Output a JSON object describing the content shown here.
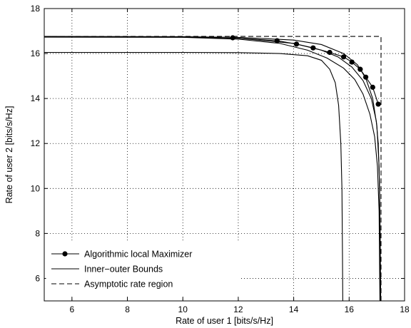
{
  "chart_data": {
    "type": "line",
    "xlabel": "Rate of user 1 [bits/s/Hz]",
    "ylabel": "Rate of user 2 [bits/s/Hz]",
    "xlim": [
      5,
      18
    ],
    "ylim": [
      5,
      18
    ],
    "xticks": [
      6,
      8,
      10,
      12,
      14,
      16,
      18
    ],
    "yticks": [
      6,
      8,
      10,
      12,
      14,
      16,
      18
    ],
    "grid": true,
    "legend_position": "bottom-left",
    "series": [
      {
        "name": "Algorithmic local Maximizer",
        "style": "solid-with-markers",
        "color": "#000000",
        "x": [
          11.8,
          13.4,
          14.1,
          14.7,
          15.3,
          15.8,
          16.1,
          16.4,
          16.6,
          16.85,
          17.05
        ],
        "y": [
          16.7,
          16.57,
          16.42,
          16.25,
          16.05,
          15.85,
          15.62,
          15.3,
          14.95,
          14.5,
          13.75
        ]
      },
      {
        "name": "Inner-outer Bounds",
        "style": "solid",
        "color": "#000000",
        "curves": [
          {
            "x": [
              5,
              8,
              10,
              12,
              13.5,
              14.5,
              15.0,
              15.3,
              15.5,
              15.62,
              15.7,
              15.74,
              15.76,
              15.77
            ],
            "y": [
              16.05,
              16.05,
              16.05,
              16.04,
              16.0,
              15.9,
              15.7,
              15.3,
              14.7,
              13.7,
              12.0,
              10.0,
              7.0,
              5.0
            ]
          },
          {
            "x": [
              5,
              10,
              12,
              14,
              15,
              15.8,
              16.3,
              16.6,
              16.85,
              17.0,
              17.08,
              17.12,
              17.14
            ],
            "y": [
              16.76,
              16.75,
              16.72,
              16.6,
              16.4,
              16.0,
              15.5,
              14.9,
              14.0,
              12.8,
              11.0,
              8.0,
              5.0
            ]
          },
          {
            "x": [
              5,
              10,
              12,
              14,
              15,
              15.6,
              16.1,
              16.5,
              16.8,
              16.98,
              17.05,
              17.1,
              17.12,
              17.13
            ],
            "y": [
              16.74,
              16.73,
              16.68,
              16.45,
              16.15,
              15.85,
              15.4,
              14.8,
              14.0,
              13.0,
              12.0,
              10.0,
              7.0,
              5.0
            ]
          },
          {
            "x": [
              5,
              10,
              12,
              13.5,
              14.5,
              15.2,
              15.8,
              16.2,
              16.5,
              16.75,
              16.92,
              17.02,
              17.08,
              17.11
            ],
            "y": [
              16.73,
              16.72,
              16.64,
              16.45,
              16.15,
              15.8,
              15.35,
              14.85,
              14.2,
              13.3,
              12.3,
              11.0,
              9.0,
              5.0
            ]
          }
        ]
      },
      {
        "name": "Asymptotic rate region",
        "style": "dashed",
        "color": "#000000",
        "x": [
          5,
          17.15,
          17.15
        ],
        "y": [
          16.76,
          16.76,
          5
        ]
      }
    ],
    "legend": [
      {
        "label": "Algorithmic local Maximizer",
        "style": "solid-with-markers"
      },
      {
        "label": "Inner−outer Bounds",
        "style": "solid"
      },
      {
        "label": "Asymptotic rate region",
        "style": "dashed"
      }
    ]
  }
}
